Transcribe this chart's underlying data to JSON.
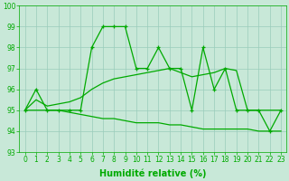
{
  "spiky_x": [
    0,
    1,
    2,
    3,
    4,
    5,
    6,
    7,
    8,
    9,
    10,
    11,
    12,
    13,
    14,
    15,
    16,
    17,
    18,
    19,
    20,
    21,
    22,
    23
  ],
  "spiky_y": [
    95,
    96,
    95,
    95,
    95,
    95,
    98,
    99,
    99,
    99,
    97,
    97,
    98,
    97,
    97,
    95,
    98,
    96,
    97,
    95,
    95,
    95,
    94,
    95
  ],
  "smooth_up_x": [
    0,
    1,
    2,
    3,
    4,
    5,
    6,
    7,
    8,
    9,
    10,
    11,
    12,
    13,
    14,
    15,
    16,
    17,
    18,
    19,
    20,
    21,
    22,
    23
  ],
  "smooth_up_y": [
    95,
    95.5,
    95.2,
    95.3,
    95.4,
    95.6,
    96.0,
    96.3,
    96.5,
    96.6,
    96.7,
    96.8,
    96.9,
    97.0,
    96.8,
    96.6,
    96.7,
    96.8,
    97.0,
    96.9,
    95.0,
    95.0,
    95.0,
    95.0
  ],
  "smooth_dn_x": [
    0,
    1,
    2,
    3,
    4,
    5,
    6,
    7,
    8,
    9,
    10,
    11,
    12,
    13,
    14,
    15,
    16,
    17,
    18,
    19,
    20,
    21,
    22,
    23
  ],
  "smooth_dn_y": [
    95,
    95.0,
    95.0,
    95.0,
    94.9,
    94.8,
    94.7,
    94.6,
    94.6,
    94.5,
    94.4,
    94.4,
    94.4,
    94.3,
    94.3,
    94.2,
    94.1,
    94.1,
    94.1,
    94.1,
    94.1,
    94.0,
    94.0,
    94.0
  ],
  "line_color": "#00aa00",
  "bg_color": "#c8e8d8",
  "grid_color": "#99ccbb",
  "xlabel": "Humidité relative (%)",
  "ylim": [
    93,
    100
  ],
  "xlim_min": -0.5,
  "xlim_max": 23.5,
  "yticks": [
    93,
    94,
    95,
    96,
    97,
    98,
    99,
    100
  ],
  "xticks": [
    0,
    1,
    2,
    3,
    4,
    5,
    6,
    7,
    8,
    9,
    10,
    11,
    12,
    13,
    14,
    15,
    16,
    17,
    18,
    19,
    20,
    21,
    22,
    23
  ],
  "tick_fontsize": 5.5,
  "xlabel_fontsize": 7
}
